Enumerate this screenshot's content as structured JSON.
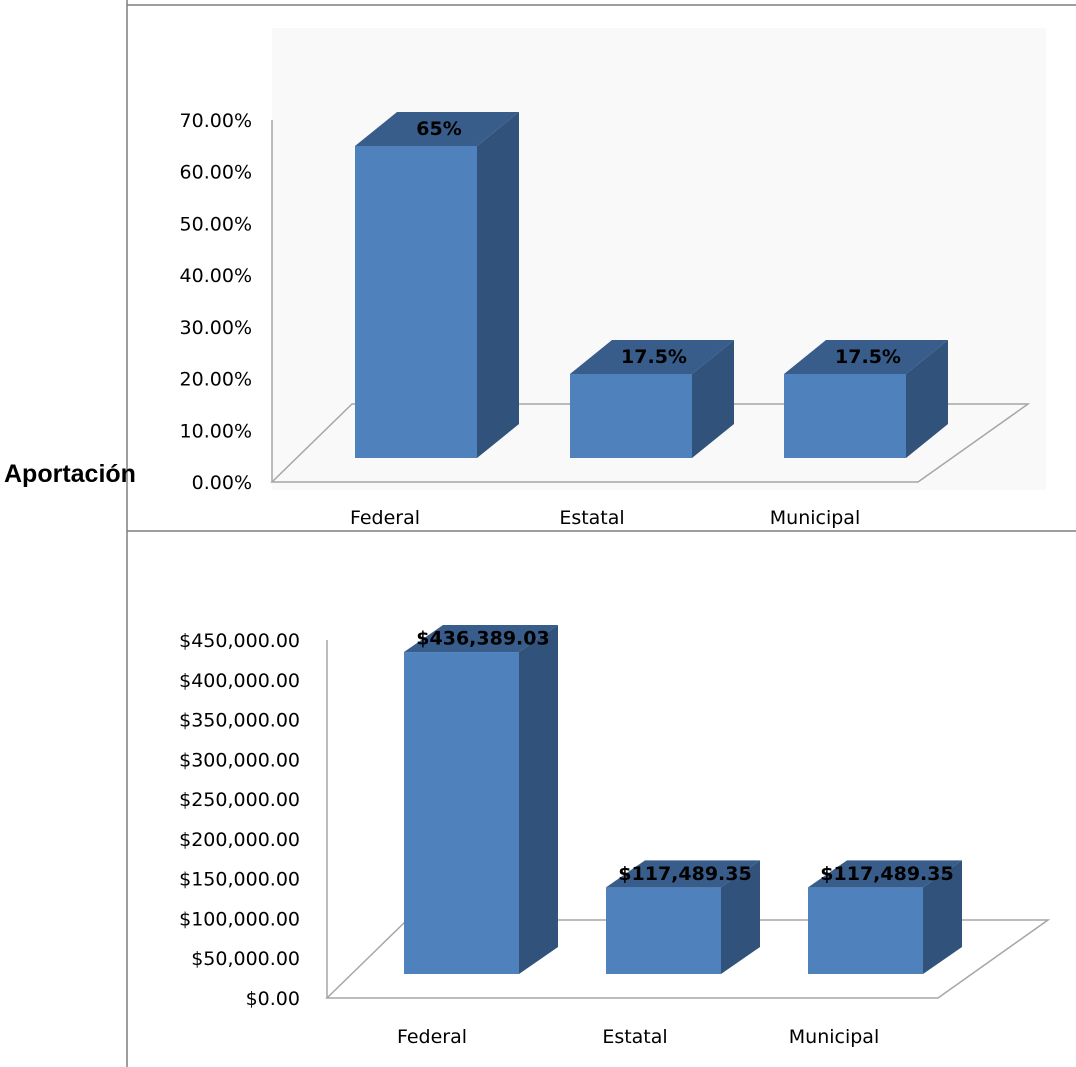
{
  "row_label": "Aportación",
  "colors": {
    "front": "#4f81bd",
    "top": "#385d8a",
    "side": "#31527b",
    "floor_line": "#a6a6a6",
    "frame": "#7f7f7f",
    "plot_bg": "#f9f9f9"
  },
  "chart_data": [
    {
      "type": "bar",
      "title": "",
      "xlabel": "",
      "ylabel": "",
      "categories": [
        "Federal",
        "Estatal",
        "Municipal"
      ],
      "values": [
        0.65,
        0.175,
        0.175
      ],
      "data_labels": [
        "65%",
        "17.5%",
        "17.5%"
      ],
      "y_ticks": [
        "0.00%",
        "10.00%",
        "20.00%",
        "30.00%",
        "40.00%",
        "50.00%",
        "60.00%",
        "70.00%"
      ],
      "ylim": [
        0,
        0.7
      ],
      "three_d": true,
      "grid": false,
      "legend": "none"
    },
    {
      "type": "bar",
      "title": "",
      "xlabel": "",
      "ylabel": "",
      "categories": [
        "Federal",
        "Estatal",
        "Municipal"
      ],
      "values": [
        436389.03,
        117489.35,
        117489.35
      ],
      "data_labels": [
        "$436,389.03",
        "$117,489.35",
        "$117,489.35"
      ],
      "y_ticks": [
        "$0.00",
        "$50,000.00",
        "$100,000.00",
        "$150,000.00",
        "$200,000.00",
        "$250,000.00",
        "$300,000.00",
        "$350,000.00",
        "$400,000.00",
        "$450,000.00"
      ],
      "ylim": [
        0,
        450000
      ],
      "three_d": true,
      "grid": false,
      "legend": "none"
    }
  ]
}
